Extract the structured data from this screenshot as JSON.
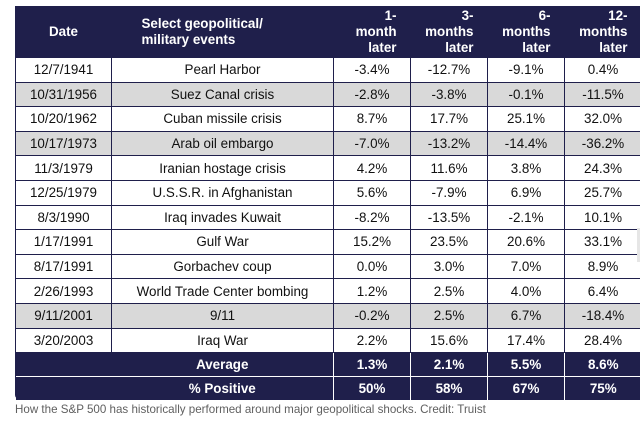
{
  "headers": {
    "date": "Date",
    "event": "Select geopolitical/\nmilitary events",
    "m1": "1-\nmonth\nlater",
    "m3": "3-\nmonths\nlater",
    "m6": "6-\nmonths\nlater",
    "m12": "12-\nmonths\nlater"
  },
  "rows": [
    {
      "date": "12/7/1941",
      "event": "Pearl Harbor",
      "m1": "-3.4%",
      "m3": "-12.7%",
      "m6": "-9.1%",
      "m12": "0.4%"
    },
    {
      "date": "10/31/1956",
      "event": "Suez Canal crisis",
      "m1": "-2.8%",
      "m3": "-3.8%",
      "m6": "-0.1%",
      "m12": "-11.5%"
    },
    {
      "date": "10/20/1962",
      "event": "Cuban missile crisis",
      "m1": "8.7%",
      "m3": "17.7%",
      "m6": "25.1%",
      "m12": "32.0%"
    },
    {
      "date": "10/17/1973",
      "event": "Arab oil embargo",
      "m1": "-7.0%",
      "m3": "-13.2%",
      "m6": "-14.4%",
      "m12": "-36.2%"
    },
    {
      "date": "11/3/1979",
      "event": "Iranian hostage crisis",
      "m1": "4.2%",
      "m3": "11.6%",
      "m6": "3.8%",
      "m12": "24.3%"
    },
    {
      "date": "12/25/1979",
      "event": "U.S.S.R. in Afghanistan",
      "m1": "5.6%",
      "m3": "-7.9%",
      "m6": "6.9%",
      "m12": "25.7%"
    },
    {
      "date": "8/3/1990",
      "event": "Iraq invades Kuwait",
      "m1": "-8.2%",
      "m3": "-13.5%",
      "m6": "-2.1%",
      "m12": "10.1%"
    },
    {
      "date": "1/17/1991",
      "event": "Gulf War",
      "m1": "15.2%",
      "m3": "23.5%",
      "m6": "20.6%",
      "m12": "33.1%"
    },
    {
      "date": "8/17/1991",
      "event": "Gorbachev coup",
      "m1": "0.0%",
      "m3": "3.0%",
      "m6": "7.0%",
      "m12": "8.9%"
    },
    {
      "date": "2/26/1993",
      "event": "World Trade Center bombing",
      "m1": "1.2%",
      "m3": "2.5%",
      "m6": "4.0%",
      "m12": "6.4%"
    },
    {
      "date": "9/11/2001",
      "event": "9/11",
      "m1": "-0.2%",
      "m3": "2.5%",
      "m6": "6.7%",
      "m12": "-18.4%"
    },
    {
      "date": "3/20/2003",
      "event": "Iraq War",
      "m1": "2.2%",
      "m3": "15.6%",
      "m6": "17.4%",
      "m12": "28.4%"
    }
  ],
  "summary": {
    "average": {
      "label": "Average",
      "m1": "1.3%",
      "m3": "2.1%",
      "m6": "5.5%",
      "m12": "8.6%"
    },
    "positive": {
      "label": "% Positive",
      "m1": "50%",
      "m3": "58%",
      "m6": "67%",
      "m12": "75%"
    }
  },
  "caption": "How the S&P 500 has historically performed around major geopolitical shocks. Credit: Truist",
  "colors": {
    "header_bg": "#1f1f4b",
    "stripe": "#d9d9d9"
  }
}
